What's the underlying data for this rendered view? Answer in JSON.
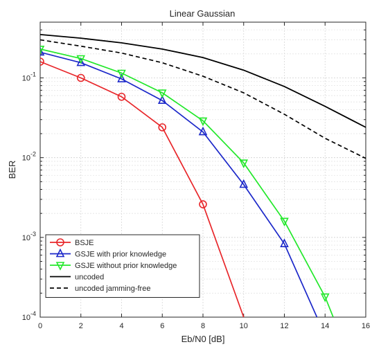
{
  "chart_data": {
    "type": "line",
    "title": "Linear Gaussian",
    "xlabel": "Eb/N0 [dB]",
    "ylabel": "BER",
    "xlim": [
      0,
      16
    ],
    "ylim": [
      0.0001,
      0.5
    ],
    "yscale": "log",
    "grid": true,
    "legend_position": "bottom-left",
    "x_ticks": [
      0,
      2,
      4,
      6,
      8,
      10,
      12,
      14,
      16
    ],
    "x_tick_labels": [
      "0",
      "2",
      "4",
      "6",
      "8",
      "10",
      "12",
      "14",
      "16"
    ],
    "y_ticks": [
      0.0001,
      0.001,
      0.01,
      0.1
    ],
    "y_tick_labels": [
      {
        "base": "10",
        "exp": "-4"
      },
      {
        "base": "10",
        "exp": "-3"
      },
      {
        "base": "10",
        "exp": "-2"
      },
      {
        "base": "10",
        "exp": "-1"
      }
    ],
    "series": [
      {
        "name": "BSJE",
        "color": "#e8262a",
        "marker": "circle",
        "dash": "solid",
        "x": [
          0,
          2,
          4,
          6,
          8,
          10
        ],
        "y": [
          0.16,
          0.1,
          0.058,
          0.024,
          0.0026,
          0.0001
        ]
      },
      {
        "name": "GSJE with prior knowledge",
        "color": "#1b27c9",
        "marker": "triangle-up",
        "dash": "solid",
        "x": [
          0,
          2,
          4,
          6,
          8,
          10,
          12,
          13.6
        ],
        "y": [
          0.21,
          0.155,
          0.097,
          0.052,
          0.021,
          0.0046,
          0.00083,
          0.0001
        ]
      },
      {
        "name": "GSJE without prior knowledge",
        "color": "#22e82a",
        "marker": "triangle-down",
        "dash": "solid",
        "x": [
          0,
          2,
          4,
          6,
          8,
          10,
          12,
          14,
          14.4
        ],
        "y": [
          0.23,
          0.175,
          0.115,
          0.065,
          0.029,
          0.0086,
          0.0016,
          0.00018,
          0.0001
        ]
      },
      {
        "name": "uncoded",
        "color": "#000000",
        "marker": "none",
        "dash": "solid",
        "x": [
          0,
          2,
          4,
          6,
          8,
          10,
          12,
          14,
          16
        ],
        "y": [
          0.35,
          0.315,
          0.275,
          0.23,
          0.18,
          0.125,
          0.078,
          0.044,
          0.024
        ]
      },
      {
        "name": "uncoded jamming-free",
        "color": "#000000",
        "marker": "none",
        "dash": "dashed",
        "x": [
          0,
          2,
          4,
          6,
          8,
          10,
          12,
          14,
          16
        ],
        "y": [
          0.3,
          0.25,
          0.205,
          0.155,
          0.105,
          0.065,
          0.035,
          0.0175,
          0.0098
        ]
      }
    ]
  }
}
